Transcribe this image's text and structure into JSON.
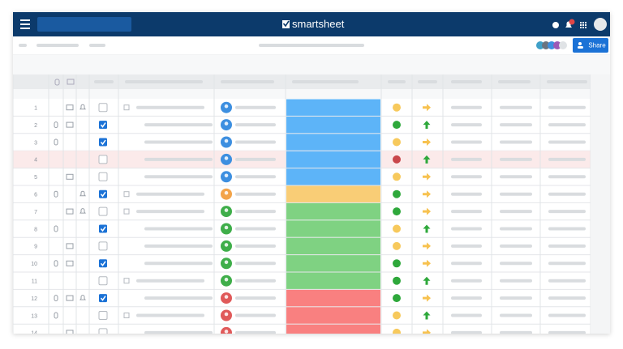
{
  "app": {
    "logo": "smartsheet",
    "share_button": "Share"
  },
  "colors": {
    "blue": "#5db4f8",
    "orange": "#f9cd76",
    "green": "#7fd282",
    "red": "#f98080",
    "dot_yellow": "#f7c95c",
    "dot_green": "#2ea83b",
    "dot_red": "#c9474b",
    "avatar_blue": "#3d8fe0",
    "avatar_orange": "#f3a44a",
    "avatar_green": "#3fae4a",
    "avatar_red": "#e05a5a"
  },
  "rows": [
    {
      "label": "1",
      "icons": [
        "comment",
        "bell"
      ],
      "checked": false,
      "block": "blue",
      "dot": "dot_yellow",
      "arrow": "right"
    },
    {
      "label": "2",
      "icons": [
        "attach",
        "comment"
      ],
      "checked": true,
      "block": "blue",
      "dot": "dot_green",
      "arrow": "up"
    },
    {
      "label": "3",
      "icons": [
        "attach"
      ],
      "checked": true,
      "block": "blue",
      "dot": "dot_yellow",
      "arrow": "right"
    },
    {
      "label": "4",
      "icons": [],
      "checked": false,
      "block": "blue",
      "dot": "dot_red",
      "arrow": "up",
      "highlight": true
    },
    {
      "label": "5",
      "icons": [
        "comment"
      ],
      "checked": false,
      "block": "blue",
      "dot": "dot_yellow",
      "arrow": "right"
    },
    {
      "label": "6",
      "icons": [
        "attach",
        "bell"
      ],
      "checked": true,
      "block": "orange",
      "dot": "dot_green",
      "arrow": "right"
    },
    {
      "label": "7",
      "icons": [
        "comment",
        "bell"
      ],
      "checked": false,
      "block": "green",
      "dot": "dot_green",
      "arrow": "right"
    },
    {
      "label": "8",
      "icons": [
        "attach"
      ],
      "checked": true,
      "block": "green",
      "dot": "dot_yellow",
      "arrow": "up"
    },
    {
      "label": "9",
      "icons": [
        "comment"
      ],
      "checked": false,
      "block": "green",
      "dot": "dot_yellow",
      "arrow": "right"
    },
    {
      "label": "10",
      "icons": [
        "attach",
        "comment"
      ],
      "checked": true,
      "block": "green",
      "dot": "dot_green",
      "arrow": "right"
    },
    {
      "label": "11",
      "icons": [],
      "checked": false,
      "block": "green",
      "dot": "dot_green",
      "arrow": "up"
    },
    {
      "label": "12",
      "icons": [
        "attach",
        "comment",
        "bell"
      ],
      "checked": true,
      "block": "red",
      "dot": "dot_green",
      "arrow": "right"
    },
    {
      "label": "13",
      "icons": [
        "attach"
      ],
      "checked": false,
      "block": "red",
      "dot": "dot_yellow",
      "arrow": "up"
    },
    {
      "label": "14",
      "icons": [
        "comment"
      ],
      "checked": false,
      "block": "red",
      "dot": "dot_yellow",
      "arrow": "right"
    }
  ]
}
